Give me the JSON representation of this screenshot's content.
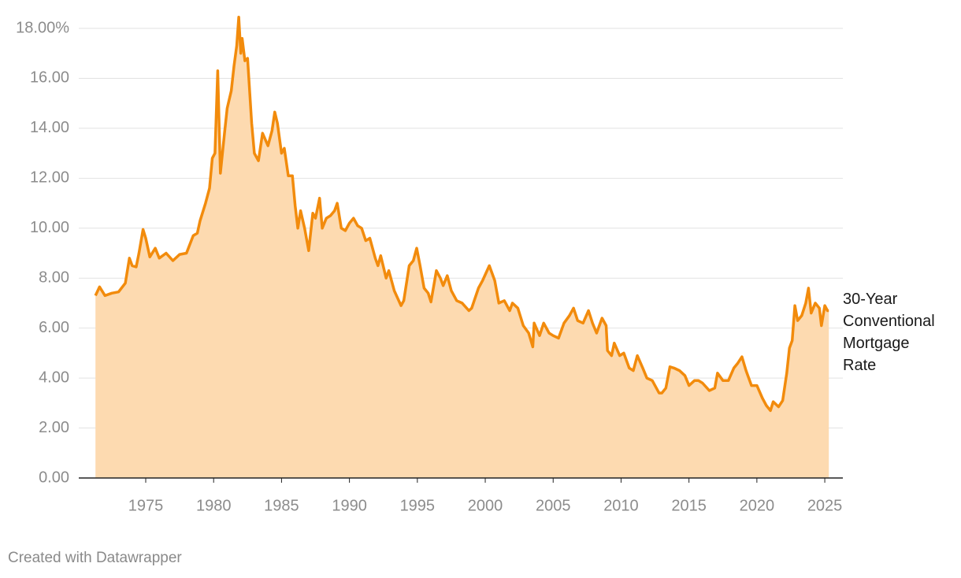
{
  "chart_data": {
    "type": "area",
    "footer": "Created with Datawrapper",
    "x": [
      1971.3,
      1971.6,
      1972.0,
      1972.5,
      1973.0,
      1973.5,
      1973.8,
      1974.0,
      1974.3,
      1974.5,
      1974.8,
      1975.0,
      1975.3,
      1975.7,
      1976.0,
      1976.5,
      1977.0,
      1977.5,
      1978.0,
      1978.5,
      1978.8,
      1979.0,
      1979.4,
      1979.7,
      1979.9,
      1980.1,
      1980.3,
      1980.5,
      1980.8,
      1981.0,
      1981.3,
      1981.5,
      1981.7,
      1981.85,
      1982.0,
      1982.1,
      1982.3,
      1982.5,
      1982.8,
      1983.0,
      1983.3,
      1983.6,
      1984.0,
      1984.3,
      1984.5,
      1984.7,
      1985.0,
      1985.2,
      1985.5,
      1985.8,
      1986.0,
      1986.2,
      1986.4,
      1986.7,
      1987.0,
      1987.3,
      1987.5,
      1987.8,
      1988.0,
      1988.3,
      1988.6,
      1988.9,
      1989.1,
      1989.4,
      1989.7,
      1990.0,
      1990.3,
      1990.6,
      1990.9,
      1991.2,
      1991.5,
      1991.9,
      1992.1,
      1992.3,
      1992.7,
      1992.9,
      1993.3,
      1993.8,
      1994.0,
      1994.4,
      1994.7,
      1994.95,
      1995.2,
      1995.5,
      1995.8,
      1996.0,
      1996.4,
      1996.7,
      1996.9,
      1997.2,
      1997.5,
      1997.9,
      1998.3,
      1998.8,
      1999.0,
      1999.5,
      1999.8,
      2000.3,
      2000.7,
      2001.0,
      2001.4,
      2001.8,
      2002.0,
      2002.4,
      2002.8,
      2003.2,
      2003.5,
      2003.6,
      2004.0,
      2004.3,
      2004.7,
      2005.0,
      2005.4,
      2005.8,
      2006.2,
      2006.5,
      2006.8,
      2007.2,
      2007.6,
      2007.9,
      2008.2,
      2008.6,
      2008.9,
      2009.0,
      2009.3,
      2009.5,
      2009.9,
      2010.2,
      2010.6,
      2010.9,
      2011.2,
      2011.6,
      2011.9,
      2012.3,
      2012.8,
      2013.0,
      2013.3,
      2013.6,
      2013.9,
      2014.3,
      2014.7,
      2015.0,
      2015.4,
      2015.7,
      2016.0,
      2016.5,
      2016.9,
      2017.1,
      2017.5,
      2017.9,
      2018.3,
      2018.6,
      2018.9,
      2019.2,
      2019.6,
      2020.0,
      2020.4,
      2020.7,
      2021.0,
      2021.2,
      2021.6,
      2021.9,
      2022.2,
      2022.4,
      2022.6,
      2022.8,
      2023.0,
      2023.3,
      2023.6,
      2023.8,
      2024.0,
      2024.3,
      2024.6,
      2024.75,
      2025.0,
      2025.2,
      2025.3
    ],
    "series": [
      {
        "name": "30-Year Conventional Mortgage Rate",
        "color": "#f28b0c",
        "fill": "#fddab0",
        "values": [
          7.3,
          7.65,
          7.3,
          7.4,
          7.45,
          7.8,
          8.8,
          8.5,
          8.45,
          9.0,
          9.95,
          9.6,
          8.85,
          9.2,
          8.8,
          9.0,
          8.7,
          8.95,
          9.0,
          9.7,
          9.8,
          10.3,
          11.0,
          11.6,
          12.8,
          13.0,
          16.3,
          12.2,
          13.8,
          14.8,
          15.5,
          16.5,
          17.3,
          18.45,
          17.0,
          17.6,
          16.7,
          16.8,
          14.2,
          13.0,
          12.7,
          13.8,
          13.3,
          13.9,
          14.65,
          14.2,
          13.0,
          13.2,
          12.1,
          12.1,
          10.9,
          10.0,
          10.7,
          10.0,
          9.1,
          10.6,
          10.4,
          11.2,
          10.0,
          10.4,
          10.5,
          10.7,
          11.0,
          10.0,
          9.9,
          10.2,
          10.4,
          10.1,
          10.0,
          9.5,
          9.6,
          8.8,
          8.5,
          8.9,
          8.0,
          8.3,
          7.5,
          6.9,
          7.1,
          8.5,
          8.7,
          9.2,
          8.5,
          7.6,
          7.4,
          7.05,
          8.3,
          8.0,
          7.7,
          8.1,
          7.5,
          7.1,
          7.0,
          6.7,
          6.8,
          7.6,
          7.9,
          8.5,
          7.9,
          7.0,
          7.1,
          6.7,
          7.0,
          6.8,
          6.1,
          5.8,
          5.25,
          6.2,
          5.7,
          6.2,
          5.8,
          5.7,
          5.6,
          6.2,
          6.5,
          6.8,
          6.3,
          6.2,
          6.7,
          6.2,
          5.8,
          6.4,
          6.1,
          5.1,
          4.9,
          5.4,
          4.9,
          5.0,
          4.4,
          4.3,
          4.9,
          4.4,
          4.0,
          3.9,
          3.4,
          3.4,
          3.6,
          4.45,
          4.4,
          4.3,
          4.1,
          3.7,
          3.9,
          3.9,
          3.8,
          3.5,
          3.6,
          4.2,
          3.9,
          3.9,
          4.4,
          4.6,
          4.85,
          4.3,
          3.7,
          3.7,
          3.2,
          2.9,
          2.7,
          3.05,
          2.85,
          3.1,
          4.2,
          5.2,
          5.5,
          6.9,
          6.3,
          6.5,
          7.0,
          7.6,
          6.6,
          7.0,
          6.8,
          6.1,
          6.9,
          6.7,
          6.7
        ]
      }
    ],
    "xlim": [
      1970.07,
      2026.33
    ],
    "xticks": [
      1975,
      1980,
      1985,
      1990,
      1995,
      2000,
      2005,
      2010,
      2015,
      2020,
      2025
    ],
    "ylim": [
      0,
      18
    ],
    "yticks": [
      {
        "value": 0,
        "label": "0.00"
      },
      {
        "value": 2,
        "label": "2.00"
      },
      {
        "value": 4,
        "label": "4.00"
      },
      {
        "value": 6,
        "label": "6.00"
      },
      {
        "value": 8,
        "label": "8.00"
      },
      {
        "value": 10,
        "label": "10.00"
      },
      {
        "value": 12,
        "label": "12.00"
      },
      {
        "value": 14,
        "label": "14.00"
      },
      {
        "value": 16,
        "label": "16.00"
      },
      {
        "value": 18,
        "label": "18.00%"
      }
    ],
    "grid": true
  }
}
